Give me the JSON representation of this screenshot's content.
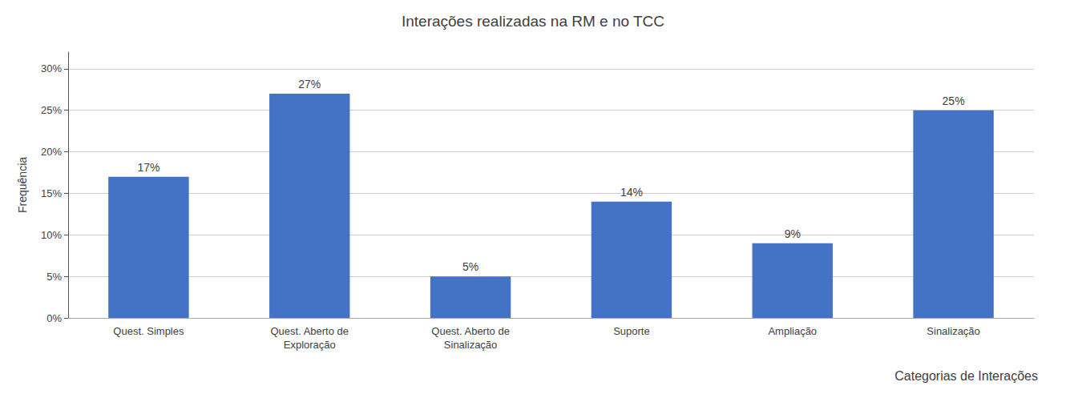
{
  "chart_data": {
    "type": "bar",
    "title": "Interações realizadas na RM e no TCC",
    "categories": [
      "Quest. Simples",
      "Quest. Aberto de\nExploração",
      "Quest. Aberto de\nSinalização",
      "Suporte",
      "Ampliação",
      "Sinalização"
    ],
    "values": [
      17,
      27,
      5,
      14,
      9,
      25
    ],
    "value_labels": [
      "17%",
      "27%",
      "5%",
      "14%",
      "9%",
      "25%"
    ],
    "data_labels": true,
    "color": "#4472C4",
    "ylabel": "Frequência",
    "xlabel": "Categorias de Interações",
    "ylim": [
      0,
      32
    ],
    "yticks": [
      {
        "value": 0,
        "label": "0%"
      },
      {
        "value": 5,
        "label": "5%"
      },
      {
        "value": 10,
        "label": "10%"
      },
      {
        "value": 15,
        "label": "15%"
      },
      {
        "value": 20,
        "label": "20%"
      },
      {
        "value": 25,
        "label": "25%"
      },
      {
        "value": 30,
        "label": "30%"
      }
    ],
    "grid": true
  }
}
